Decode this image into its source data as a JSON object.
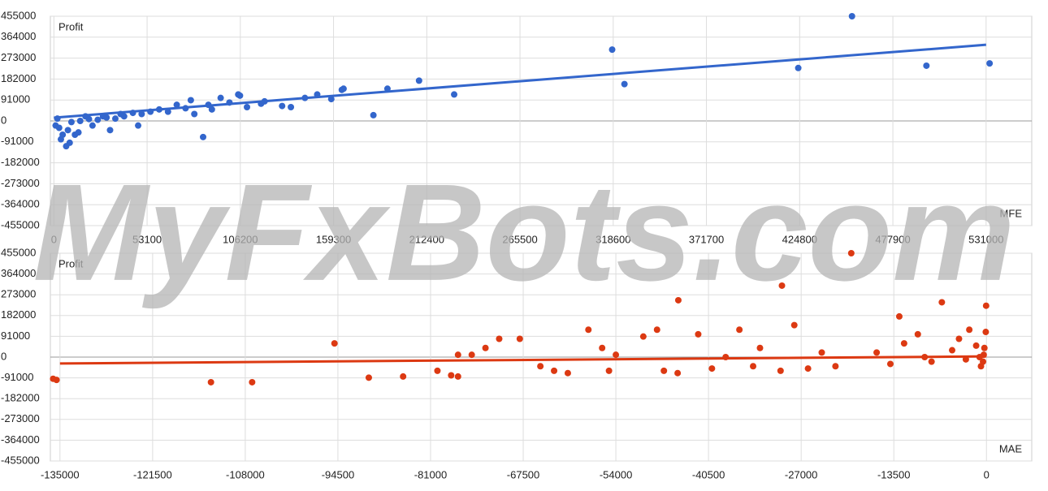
{
  "watermark": "MyFxBots.com",
  "chart_data": [
    {
      "type": "scatter",
      "ylabel": "Profit",
      "xlabel": "MFE",
      "color": "#3366cc",
      "grid": true,
      "xlim": [
        -2000,
        557000
      ],
      "ylim": [
        -455000,
        455000
      ],
      "xticks": [
        0,
        53100,
        106200,
        159300,
        212400,
        265500,
        318600,
        371700,
        424800,
        477900,
        531000
      ],
      "yticks": [
        -455000,
        -364000,
        -273000,
        -182000,
        -91000,
        0,
        91000,
        182000,
        273000,
        364000,
        455000
      ],
      "x": [
        454600,
        318000,
        325000,
        424000,
        497000,
        533000,
        228000,
        208000,
        190000,
        182000,
        164000,
        165000,
        150000,
        158000,
        143000,
        120000,
        118000,
        130000,
        110000,
        105000,
        106000,
        95000,
        88000,
        85000,
        78000,
        75000,
        70000,
        60000,
        55000,
        50000,
        45000,
        40000,
        35000,
        30000,
        25000,
        20000,
        15000,
        10000,
        8000,
        5000,
        7000,
        9000,
        3000,
        2000,
        1000,
        12000,
        4000,
        18000,
        28000,
        38000,
        65000,
        100000,
        135000,
        90000,
        80000,
        48000,
        32000,
        22000,
        14000
      ],
      "values": [
        455000,
        310000,
        160000,
        230000,
        240000,
        250000,
        115000,
        175000,
        140000,
        25000,
        135000,
        140000,
        115000,
        95000,
        100000,
        85000,
        75000,
        65000,
        60000,
        115000,
        110000,
        100000,
        70000,
        -70000,
        90000,
        55000,
        70000,
        50000,
        40000,
        30000,
        35000,
        20000,
        10000,
        15000,
        5000,
        8000,
        0,
        -5000,
        -40000,
        -60000,
        -110000,
        -95000,
        -30000,
        10000,
        -20000,
        -60000,
        -80000,
        20000,
        20000,
        30000,
        40000,
        80000,
        60000,
        50000,
        30000,
        -20000,
        -40000,
        -20000,
        -50000
      ],
      "trendline": {
        "x": [
          0,
          531000
        ],
        "values": [
          14000,
          331000
        ]
      }
    },
    {
      "type": "scatter",
      "ylabel": "Profit",
      "xlabel": "MAE",
      "color": "#dc3912",
      "grid": true,
      "xlim": [
        -136400,
        6600
      ],
      "ylim": [
        -455000,
        455000
      ],
      "xticks": [
        -135000,
        -121500,
        -108000,
        -94500,
        -81000,
        -67500,
        -54000,
        -40500,
        -27000,
        -13500,
        0
      ],
      "yticks": [
        -455000,
        -364000,
        -273000,
        -182000,
        -91000,
        0,
        91000,
        182000,
        273000,
        364000,
        455000
      ],
      "x": [
        -136000,
        -135500,
        -113000,
        -107000,
        -90000,
        -95000,
        -85000,
        -80000,
        -78000,
        -77000,
        -77000,
        -75000,
        -73000,
        -71000,
        -68000,
        -65000,
        -63000,
        -61000,
        -58000,
        -56000,
        -55000,
        -54000,
        -50000,
        -48000,
        -47000,
        -45000,
        -44900,
        -42000,
        -40000,
        -38000,
        -36000,
        -34000,
        -33000,
        -30000,
        -29800,
        -28000,
        -26000,
        -24000,
        -22000,
        -19700,
        -16000,
        -14000,
        -12700,
        -12000,
        -10000,
        -9000,
        -8000,
        -6500,
        -5000,
        -4000,
        -3000,
        -2500,
        -1500,
        -1000,
        -500,
        -400,
        -800,
        -100,
        -300,
        -50
      ],
      "values": [
        -95000,
        -100000,
        -110000,
        -110000,
        -90000,
        60000,
        -85000,
        -60000,
        -80000,
        -85000,
        10000,
        10000,
        40000,
        80000,
        80000,
        -40000,
        -60000,
        -70000,
        120000,
        40000,
        -60000,
        10000,
        90000,
        120000,
        -60000,
        -70000,
        249000,
        100000,
        -50000,
        0,
        120000,
        -40000,
        40000,
        -60000,
        313000,
        140000,
        -50000,
        20000,
        -40000,
        455000,
        20000,
        -30000,
        178000,
        60000,
        100000,
        0,
        -20000,
        240000,
        30000,
        80000,
        -10000,
        120000,
        50000,
        0,
        -20000,
        10000,
        -40000,
        110000,
        40000,
        225000
      ],
      "trendline": {
        "x": [
          -135000,
          0
        ],
        "values": [
          -28000,
          3000
        ]
      }
    }
  ]
}
